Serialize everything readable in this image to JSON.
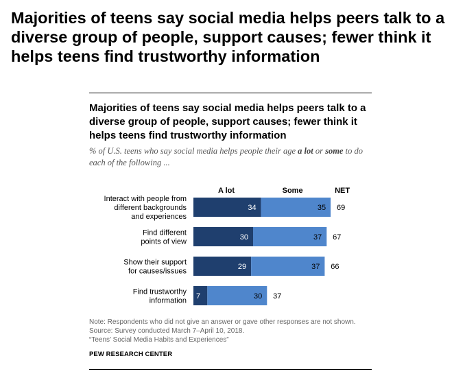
{
  "page": {
    "title": "Majorities of teens say social media helps peers talk to a diverse group of people, support causes; fewer think it helps teens find trustworthy information"
  },
  "chart": {
    "title": "Majorities of teens say social media helps peers talk to a diverse group of people, support causes; fewer think it helps teens find trustworthy information",
    "subtitle_parts": [
      {
        "text": "% of U.S. teens who say social media helps people their age ",
        "bold": false
      },
      {
        "text": "a lot",
        "bold": true
      },
      {
        "text": " or ",
        "bold": false
      },
      {
        "text": "some",
        "bold": true
      },
      {
        "text": " to do each of the following ...",
        "bold": false
      }
    ]
  },
  "chart_data": {
    "type": "bar",
    "orientation": "horizontal",
    "stacked": true,
    "column_headers": {
      "a_lot": "A lot",
      "some": "Some",
      "net": "NET"
    },
    "categories": [
      [
        "Interact with people from",
        "different backgrounds",
        "and experiences"
      ],
      [
        "Find different",
        "points of view"
      ],
      [
        "Show their support",
        "for causes/issues"
      ],
      [
        "Find trustworthy",
        "information"
      ]
    ],
    "series": [
      {
        "name": "A lot",
        "values": [
          34,
          30,
          29,
          7
        ],
        "color": "#1f3f6e"
      },
      {
        "name": "Some",
        "values": [
          35,
          37,
          37,
          30
        ],
        "color": "#4f86cc"
      }
    ],
    "net": [
      69,
      67,
      66,
      37
    ],
    "xlim": [
      0,
      100
    ],
    "grid": false
  },
  "notes": {
    "note": "Note: Respondents who did not give an answer or gave other responses are not shown.",
    "source": "Source: Survey conducted March 7–April 10, 2018.",
    "report": "“Teens’ Social Media Habits and Experiences”"
  },
  "brand": "PEW RESEARCH CENTER"
}
